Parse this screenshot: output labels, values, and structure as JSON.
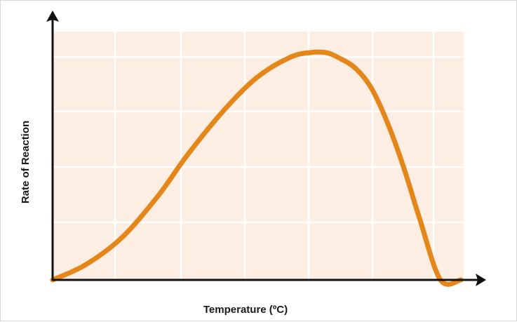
{
  "chart_data": {
    "type": "line",
    "title": "",
    "xlabel": "Temperature (ºC)",
    "ylabel": "Rate of Reaction",
    "grid": true,
    "legend": "none",
    "axis_ticks_labeled": false,
    "xlim": [
      0,
      100
    ],
    "ylim": [
      0,
      100
    ],
    "series": [
      {
        "color": "#e5861b",
        "x": [
          0,
          8,
          17,
          26,
          33,
          42,
          50,
          58,
          63,
          67,
          70,
          74,
          78,
          82,
          86,
          90,
          95,
          100
        ],
        "y": [
          0,
          6,
          17,
          34,
          50,
          68,
          81,
          89,
          91,
          91,
          89,
          85,
          77,
          63,
          45,
          24,
          0,
          0
        ]
      }
    ],
    "colors": {
      "plot_background": "#fdeee3",
      "grid": "#ffffff",
      "axis": "#111111",
      "curve": "#e5861b"
    }
  }
}
